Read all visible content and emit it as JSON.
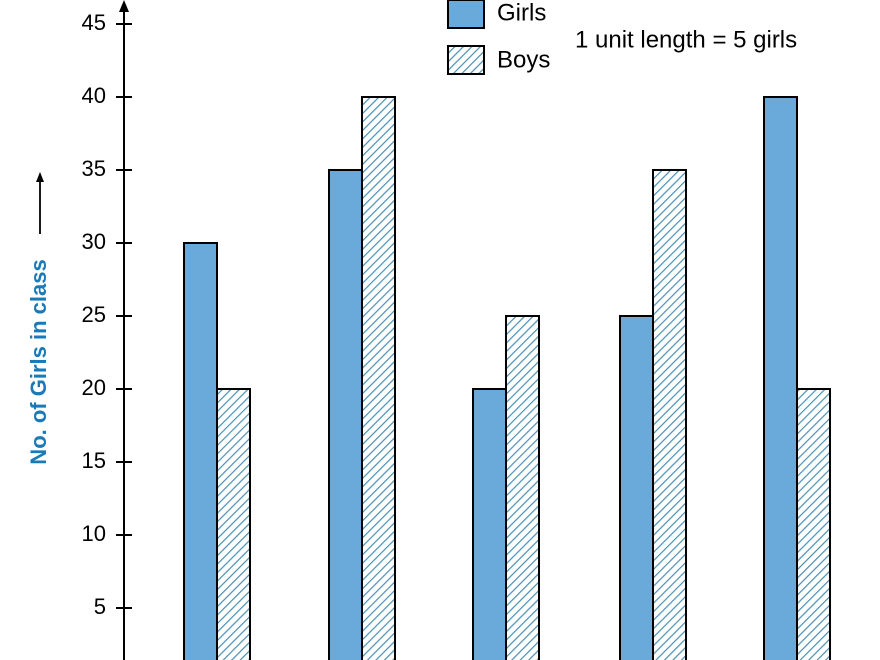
{
  "chart_data": {
    "type": "bar",
    "categories": [
      "",
      "",
      "",
      "",
      ""
    ],
    "series": [
      {
        "name": "Girls",
        "values": [
          30,
          35,
          20,
          25,
          40
        ],
        "pattern": "solid",
        "color": "#6aaadb"
      },
      {
        "name": "Boys",
        "values": [
          20,
          40,
          25,
          35,
          20
        ],
        "pattern": "hatched",
        "color": "#4a8fb5"
      }
    ],
    "ylabel": "No. of Girls in class",
    "ylim": [
      0,
      45
    ],
    "yticks": [
      5,
      10,
      15,
      20,
      25,
      30,
      35,
      40,
      45
    ],
    "annotation": "1 unit length = 5 girls",
    "legend_position": "top-center",
    "grid": false,
    "ylabel_color": "#1a7ab8",
    "bar_edge_color": "#000000"
  }
}
